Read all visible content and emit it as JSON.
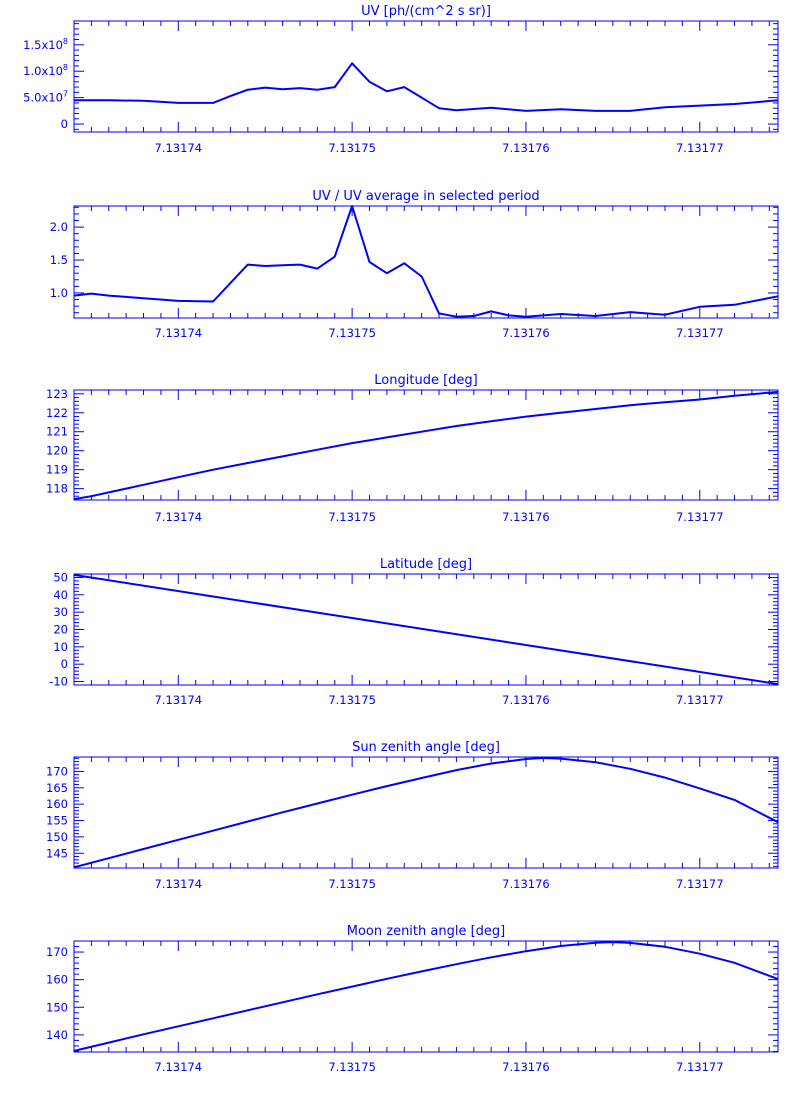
{
  "style": {
    "color": "#0000ff",
    "background": "#ffffff"
  },
  "x_ticks": [
    "7.13174",
    "7.13175",
    "7.13176",
    "7.13177"
  ],
  "chart_data": [
    {
      "type": "line",
      "title": "UV [ph/(cm^2 s sr)]",
      "xlabel": "",
      "ylabel": "",
      "xlim": [
        7.131734,
        7.1317745
      ],
      "ylim": [
        -15000000.0,
        195000000.0
      ],
      "yticks": [
        {
          "value": 0,
          "label": "0"
        },
        {
          "value": 50000000,
          "label": "5.0x10",
          "exp": "7"
        },
        {
          "value": 100000000,
          "label": "1.0x10",
          "exp": "8"
        },
        {
          "value": 150000000,
          "label": "1.5x10",
          "exp": "8"
        }
      ],
      "x": [
        7.131734,
        7.131736,
        7.131738,
        7.13174,
        7.131742,
        7.131743,
        7.131744,
        7.131745,
        7.131746,
        7.131747,
        7.131748,
        7.131749,
        7.13175,
        7.131751,
        7.131752,
        7.131753,
        7.131754,
        7.131755,
        7.131756,
        7.131758,
        7.13176,
        7.131762,
        7.131764,
        7.131766,
        7.131768,
        7.13177,
        7.131772,
        7.1317745
      ],
      "y": [
        45000000,
        45000000,
        44000000,
        40000000,
        40000000,
        53000000,
        65000000,
        69000000,
        66000000,
        68000000,
        65000000,
        70000000,
        115000000,
        80000000,
        62000000,
        70000000,
        50000000,
        30000000,
        26000000,
        31000000,
        25000000,
        28000000,
        25000000,
        25000000,
        32000000,
        35000000,
        38000000,
        45000000
      ]
    },
    {
      "type": "line",
      "title": "UV / UV average in selected period",
      "xlabel": "",
      "ylabel": "",
      "xlim": [
        7.131734,
        7.1317745
      ],
      "ylim": [
        0.62,
        2.32
      ],
      "yticks": [
        {
          "value": 1.0,
          "label": "1.0"
        },
        {
          "value": 1.5,
          "label": "1.5"
        },
        {
          "value": 2.0,
          "label": "2.0"
        }
      ],
      "x": [
        7.131734,
        7.131735,
        7.131736,
        7.131738,
        7.13174,
        7.131742,
        7.131743,
        7.131744,
        7.131745,
        7.131746,
        7.131747,
        7.131748,
        7.131749,
        7.13175,
        7.131751,
        7.131752,
        7.131753,
        7.131754,
        7.131755,
        7.131756,
        7.131757,
        7.131758,
        7.131759,
        7.13176,
        7.131762,
        7.131764,
        7.131766,
        7.131768,
        7.13177,
        7.131772,
        7.1317745
      ],
      "y": [
        0.96,
        0.99,
        0.96,
        0.92,
        0.88,
        0.87,
        1.15,
        1.43,
        1.41,
        1.42,
        1.43,
        1.37,
        1.55,
        2.32,
        1.47,
        1.3,
        1.45,
        1.25,
        0.69,
        0.64,
        0.65,
        0.72,
        0.66,
        0.64,
        0.68,
        0.65,
        0.71,
        0.67,
        0.79,
        0.82,
        0.95
      ]
    },
    {
      "type": "line",
      "title": "Longitude [deg]",
      "xlabel": "",
      "ylabel": "",
      "xlim": [
        7.131734,
        7.1317745
      ],
      "ylim": [
        117.4,
        123.2
      ],
      "yticks": [
        {
          "value": 118,
          "label": "118"
        },
        {
          "value": 119,
          "label": "119"
        },
        {
          "value": 120,
          "label": "120"
        },
        {
          "value": 121,
          "label": "121"
        },
        {
          "value": 122,
          "label": "122"
        },
        {
          "value": 123,
          "label": "123"
        }
      ],
      "x": [
        7.131734,
        7.131735,
        7.131736,
        7.131738,
        7.13174,
        7.131742,
        7.131744,
        7.131746,
        7.131748,
        7.13175,
        7.131752,
        7.131754,
        7.131756,
        7.131758,
        7.13176,
        7.131762,
        7.131764,
        7.131766,
        7.131768,
        7.13177,
        7.131772,
        7.1317745
      ],
      "y": [
        117.45,
        117.6,
        117.8,
        118.2,
        118.6,
        119.0,
        119.35,
        119.7,
        120.05,
        120.4,
        120.7,
        121.0,
        121.3,
        121.55,
        121.8,
        122.0,
        122.2,
        122.4,
        122.55,
        122.7,
        122.9,
        123.1
      ]
    },
    {
      "type": "line",
      "title": "Latitude [deg]",
      "xlabel": "",
      "ylabel": "",
      "xlim": [
        7.131734,
        7.1317745
      ],
      "ylim": [
        -12,
        52
      ],
      "yticks": [
        {
          "value": -10,
          "label": "-10"
        },
        {
          "value": 0,
          "label": "0"
        },
        {
          "value": 10,
          "label": "10"
        },
        {
          "value": 20,
          "label": "20"
        },
        {
          "value": 30,
          "label": "30"
        },
        {
          "value": 40,
          "label": "40"
        },
        {
          "value": 50,
          "label": "50"
        }
      ],
      "x": [
        7.131734,
        7.1317745
      ],
      "y": [
        51.5,
        -11.5
      ]
    },
    {
      "type": "line",
      "title": "Sun zenith angle [deg]",
      "xlabel": "",
      "ylabel": "",
      "xlim": [
        7.131734,
        7.1317745
      ],
      "ylim": [
        140.5,
        174.4
      ],
      "yticks": [
        {
          "value": 145,
          "label": "145"
        },
        {
          "value": 150,
          "label": "150"
        },
        {
          "value": 155,
          "label": "155"
        },
        {
          "value": 160,
          "label": "160"
        },
        {
          "value": 165,
          "label": "165"
        },
        {
          "value": 170,
          "label": "170"
        }
      ],
      "x": [
        7.131734,
        7.131736,
        7.131738,
        7.13174,
        7.131742,
        7.131744,
        7.131746,
        7.131748,
        7.13175,
        7.131752,
        7.131754,
        7.131756,
        7.131758,
        7.13176,
        7.131761,
        7.131762,
        7.131764,
        7.131766,
        7.131768,
        7.13177,
        7.131772,
        7.1317745
      ],
      "y": [
        140.7,
        143.5,
        146.3,
        149.1,
        151.9,
        154.7,
        157.5,
        160.2,
        162.9,
        165.5,
        168.0,
        170.4,
        172.4,
        173.8,
        174.1,
        173.9,
        172.8,
        170.8,
        168.1,
        164.8,
        161.3,
        154.5
      ]
    },
    {
      "type": "line",
      "title": "Moon zenith angle [deg]",
      "xlabel": "",
      "ylabel": "",
      "xlim": [
        7.131734,
        7.1317745
      ],
      "ylim": [
        133.8,
        174.0
      ],
      "yticks": [
        {
          "value": 140,
          "label": "140"
        },
        {
          "value": 150,
          "label": "150"
        },
        {
          "value": 160,
          "label": "160"
        },
        {
          "value": 170,
          "label": "170"
        }
      ],
      "x": [
        7.131734,
        7.131736,
        7.131738,
        7.13174,
        7.131742,
        7.131744,
        7.131746,
        7.131748,
        7.13175,
        7.131752,
        7.131754,
        7.131756,
        7.131758,
        7.13176,
        7.131762,
        7.131764,
        7.131765,
        7.131766,
        7.131768,
        7.13177,
        7.131772,
        7.1317745
      ],
      "y": [
        134.2,
        137.2,
        140.2,
        143.1,
        146.0,
        148.9,
        151.8,
        154.7,
        157.5,
        160.3,
        163.0,
        165.6,
        168.1,
        170.3,
        172.2,
        173.4,
        173.6,
        173.3,
        171.9,
        169.4,
        166.1,
        160.2
      ]
    }
  ]
}
